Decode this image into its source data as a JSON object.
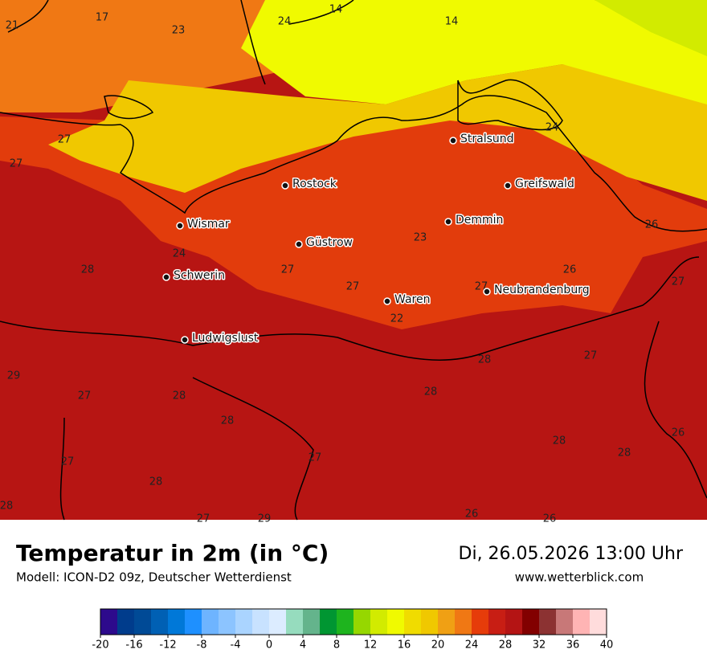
{
  "header": {
    "title": "Temperatur in 2m (in °C)",
    "subtitle": "Modell: ICON-D2 09z, Deutscher Wetterdienst",
    "datetime": "Di, 26.05.2026 13:00 Uhr",
    "website": "www.wetterblick.com"
  },
  "map": {
    "temperatures": [
      17,
      21,
      23,
      24,
      14,
      14,
      27,
      27,
      24,
      23,
      24,
      28,
      27,
      27,
      27,
      26,
      26,
      27,
      22,
      28,
      27,
      29,
      27,
      28,
      28,
      28,
      28,
      26,
      28,
      27,
      27,
      28,
      28,
      27,
      29,
      26,
      26
    ],
    "cities": [
      "Stralsund",
      "Rostock",
      "Greifswald",
      "Demmin",
      "Wismar",
      "Güstrow",
      "Schwerin",
      "Neubrandenburg",
      "Waren",
      "Ludwigslust"
    ]
  },
  "colorbar": {
    "colors": [
      "#2d0a8c",
      "#003c8c",
      "#004a96",
      "#0060b4",
      "#0078d8",
      "#1e90ff",
      "#6eb4ff",
      "#8cc4ff",
      "#aad4ff",
      "#c8e2ff",
      "#dcecff",
      "#96dcbe",
      "#64b48c",
      "#009632",
      "#1eb41e",
      "#96d700",
      "#d2eb00",
      "#f0fa00",
      "#f0dc00",
      "#f0c800",
      "#f0a014",
      "#f07814",
      "#e63c0a",
      "#c81e14",
      "#b41414",
      "#820000",
      "#8c3232",
      "#c87878",
      "#ffb4b4",
      "#ffdcdc"
    ],
    "ticks": [
      -20,
      -16,
      -12,
      -8,
      -4,
      0,
      4,
      8,
      12,
      16,
      20,
      24,
      28,
      32,
      36,
      40
    ]
  }
}
